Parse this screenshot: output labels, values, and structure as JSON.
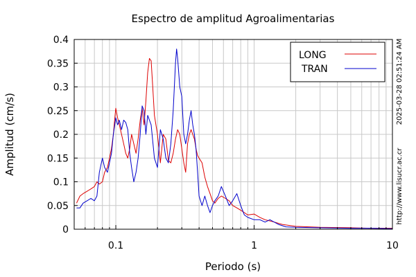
{
  "chart_data": {
    "type": "line",
    "title": "Espectro de amplitud Agroalimentarias",
    "xlabel": "Periodo (s)",
    "ylabel": "Amplitud (cm/s)",
    "xscale": "log",
    "xlim": [
      0.05,
      10
    ],
    "ylim": [
      0,
      0.4
    ],
    "x_ticks": [
      0.1,
      1,
      10
    ],
    "x_tick_labels": [
      "0.1",
      "1",
      "10"
    ],
    "y_ticks": [
      0,
      0.05,
      0.1,
      0.15,
      0.2,
      0.25,
      0.3,
      0.35,
      0.4
    ],
    "y_tick_labels": [
      "0",
      "0.05",
      "0.1",
      "0.15",
      "0.2",
      "0.25",
      "0.3",
      "0.35",
      "0.4"
    ],
    "grid": true,
    "legend_position": "top-right",
    "side_text_1": "2025-03-28 02:51:24 AM",
    "side_text_2": "http://www.lisucr.ac.cr",
    "series": [
      {
        "name": "LONG",
        "color": "#dd0000",
        "points": [
          [
            0.052,
            0.055
          ],
          [
            0.055,
            0.07
          ],
          [
            0.058,
            0.075
          ],
          [
            0.062,
            0.08
          ],
          [
            0.066,
            0.085
          ],
          [
            0.07,
            0.09
          ],
          [
            0.073,
            0.1
          ],
          [
            0.076,
            0.095
          ],
          [
            0.08,
            0.1
          ],
          [
            0.083,
            0.12
          ],
          [
            0.087,
            0.13
          ],
          [
            0.09,
            0.15
          ],
          [
            0.093,
            0.17
          ],
          [
            0.096,
            0.2
          ],
          [
            0.098,
            0.23
          ],
          [
            0.1,
            0.255
          ],
          [
            0.103,
            0.235
          ],
          [
            0.106,
            0.22
          ],
          [
            0.11,
            0.2
          ],
          [
            0.114,
            0.18
          ],
          [
            0.118,
            0.16
          ],
          [
            0.122,
            0.15
          ],
          [
            0.126,
            0.17
          ],
          [
            0.13,
            0.2
          ],
          [
            0.135,
            0.18
          ],
          [
            0.14,
            0.16
          ],
          [
            0.145,
            0.19
          ],
          [
            0.15,
            0.23
          ],
          [
            0.155,
            0.255
          ],
          [
            0.16,
            0.22
          ],
          [
            0.165,
            0.27
          ],
          [
            0.17,
            0.33
          ],
          [
            0.175,
            0.36
          ],
          [
            0.18,
            0.355
          ],
          [
            0.185,
            0.3
          ],
          [
            0.19,
            0.24
          ],
          [
            0.2,
            0.2
          ],
          [
            0.21,
            0.14
          ],
          [
            0.22,
            0.2
          ],
          [
            0.23,
            0.19
          ],
          [
            0.24,
            0.145
          ],
          [
            0.25,
            0.14
          ],
          [
            0.26,
            0.16
          ],
          [
            0.27,
            0.19
          ],
          [
            0.28,
            0.21
          ],
          [
            0.29,
            0.2
          ],
          [
            0.3,
            0.17
          ],
          [
            0.31,
            0.14
          ],
          [
            0.32,
            0.12
          ],
          [
            0.33,
            0.18
          ],
          [
            0.34,
            0.2
          ],
          [
            0.35,
            0.21
          ],
          [
            0.36,
            0.2
          ],
          [
            0.37,
            0.19
          ],
          [
            0.38,
            0.17
          ],
          [
            0.39,
            0.155
          ],
          [
            0.4,
            0.15
          ],
          [
            0.42,
            0.14
          ],
          [
            0.44,
            0.11
          ],
          [
            0.46,
            0.09
          ],
          [
            0.48,
            0.075
          ],
          [
            0.5,
            0.06
          ],
          [
            0.52,
            0.055
          ],
          [
            0.55,
            0.065
          ],
          [
            0.58,
            0.07
          ],
          [
            0.62,
            0.065
          ],
          [
            0.66,
            0.06
          ],
          [
            0.7,
            0.05
          ],
          [
            0.75,
            0.045
          ],
          [
            0.8,
            0.04
          ],
          [
            0.85,
            0.035
          ],
          [
            0.9,
            0.03
          ],
          [
            1.0,
            0.032
          ],
          [
            1.1,
            0.025
          ],
          [
            1.2,
            0.02
          ],
          [
            1.4,
            0.015
          ],
          [
            1.6,
            0.01
          ],
          [
            2.0,
            0.006
          ],
          [
            3.0,
            0.004
          ],
          [
            5.0,
            0.003
          ],
          [
            7.0,
            0.002
          ],
          [
            10.0,
            0.002
          ]
        ]
      },
      {
        "name": "TRAN",
        "color": "#0000cc",
        "points": [
          [
            0.052,
            0.045
          ],
          [
            0.055,
            0.045
          ],
          [
            0.058,
            0.055
          ],
          [
            0.062,
            0.06
          ],
          [
            0.066,
            0.065
          ],
          [
            0.07,
            0.06
          ],
          [
            0.073,
            0.07
          ],
          [
            0.076,
            0.12
          ],
          [
            0.08,
            0.15
          ],
          [
            0.083,
            0.13
          ],
          [
            0.087,
            0.12
          ],
          [
            0.09,
            0.14
          ],
          [
            0.093,
            0.16
          ],
          [
            0.096,
            0.2
          ],
          [
            0.1,
            0.235
          ],
          [
            0.103,
            0.22
          ],
          [
            0.106,
            0.23
          ],
          [
            0.11,
            0.21
          ],
          [
            0.114,
            0.23
          ],
          [
            0.118,
            0.225
          ],
          [
            0.122,
            0.21
          ],
          [
            0.126,
            0.16
          ],
          [
            0.13,
            0.13
          ],
          [
            0.135,
            0.1
          ],
          [
            0.14,
            0.12
          ],
          [
            0.145,
            0.15
          ],
          [
            0.15,
            0.2
          ],
          [
            0.155,
            0.26
          ],
          [
            0.16,
            0.25
          ],
          [
            0.165,
            0.2
          ],
          [
            0.17,
            0.24
          ],
          [
            0.18,
            0.22
          ],
          [
            0.19,
            0.15
          ],
          [
            0.2,
            0.13
          ],
          [
            0.21,
            0.21
          ],
          [
            0.22,
            0.19
          ],
          [
            0.23,
            0.15
          ],
          [
            0.24,
            0.14
          ],
          [
            0.25,
            0.18
          ],
          [
            0.26,
            0.25
          ],
          [
            0.27,
            0.35
          ],
          [
            0.275,
            0.38
          ],
          [
            0.28,
            0.36
          ],
          [
            0.29,
            0.3
          ],
          [
            0.3,
            0.28
          ],
          [
            0.31,
            0.2
          ],
          [
            0.32,
            0.18
          ],
          [
            0.33,
            0.2
          ],
          [
            0.34,
            0.23
          ],
          [
            0.35,
            0.25
          ],
          [
            0.36,
            0.22
          ],
          [
            0.37,
            0.2
          ],
          [
            0.38,
            0.17
          ],
          [
            0.39,
            0.12
          ],
          [
            0.4,
            0.07
          ],
          [
            0.42,
            0.05
          ],
          [
            0.44,
            0.07
          ],
          [
            0.46,
            0.05
          ],
          [
            0.48,
            0.035
          ],
          [
            0.5,
            0.05
          ],
          [
            0.52,
            0.06
          ],
          [
            0.55,
            0.07
          ],
          [
            0.58,
            0.09
          ],
          [
            0.62,
            0.07
          ],
          [
            0.66,
            0.05
          ],
          [
            0.7,
            0.06
          ],
          [
            0.75,
            0.075
          ],
          [
            0.8,
            0.05
          ],
          [
            0.85,
            0.03
          ],
          [
            0.9,
            0.025
          ],
          [
            1.0,
            0.02
          ],
          [
            1.1,
            0.02
          ],
          [
            1.2,
            0.015
          ],
          [
            1.3,
            0.02
          ],
          [
            1.5,
            0.01
          ],
          [
            1.7,
            0.005
          ],
          [
            2.0,
            0.004
          ],
          [
            3.0,
            0.003
          ],
          [
            5.0,
            0.002
          ],
          [
            7.0,
            0.002
          ],
          [
            10.0,
            0.001
          ]
        ]
      }
    ]
  }
}
